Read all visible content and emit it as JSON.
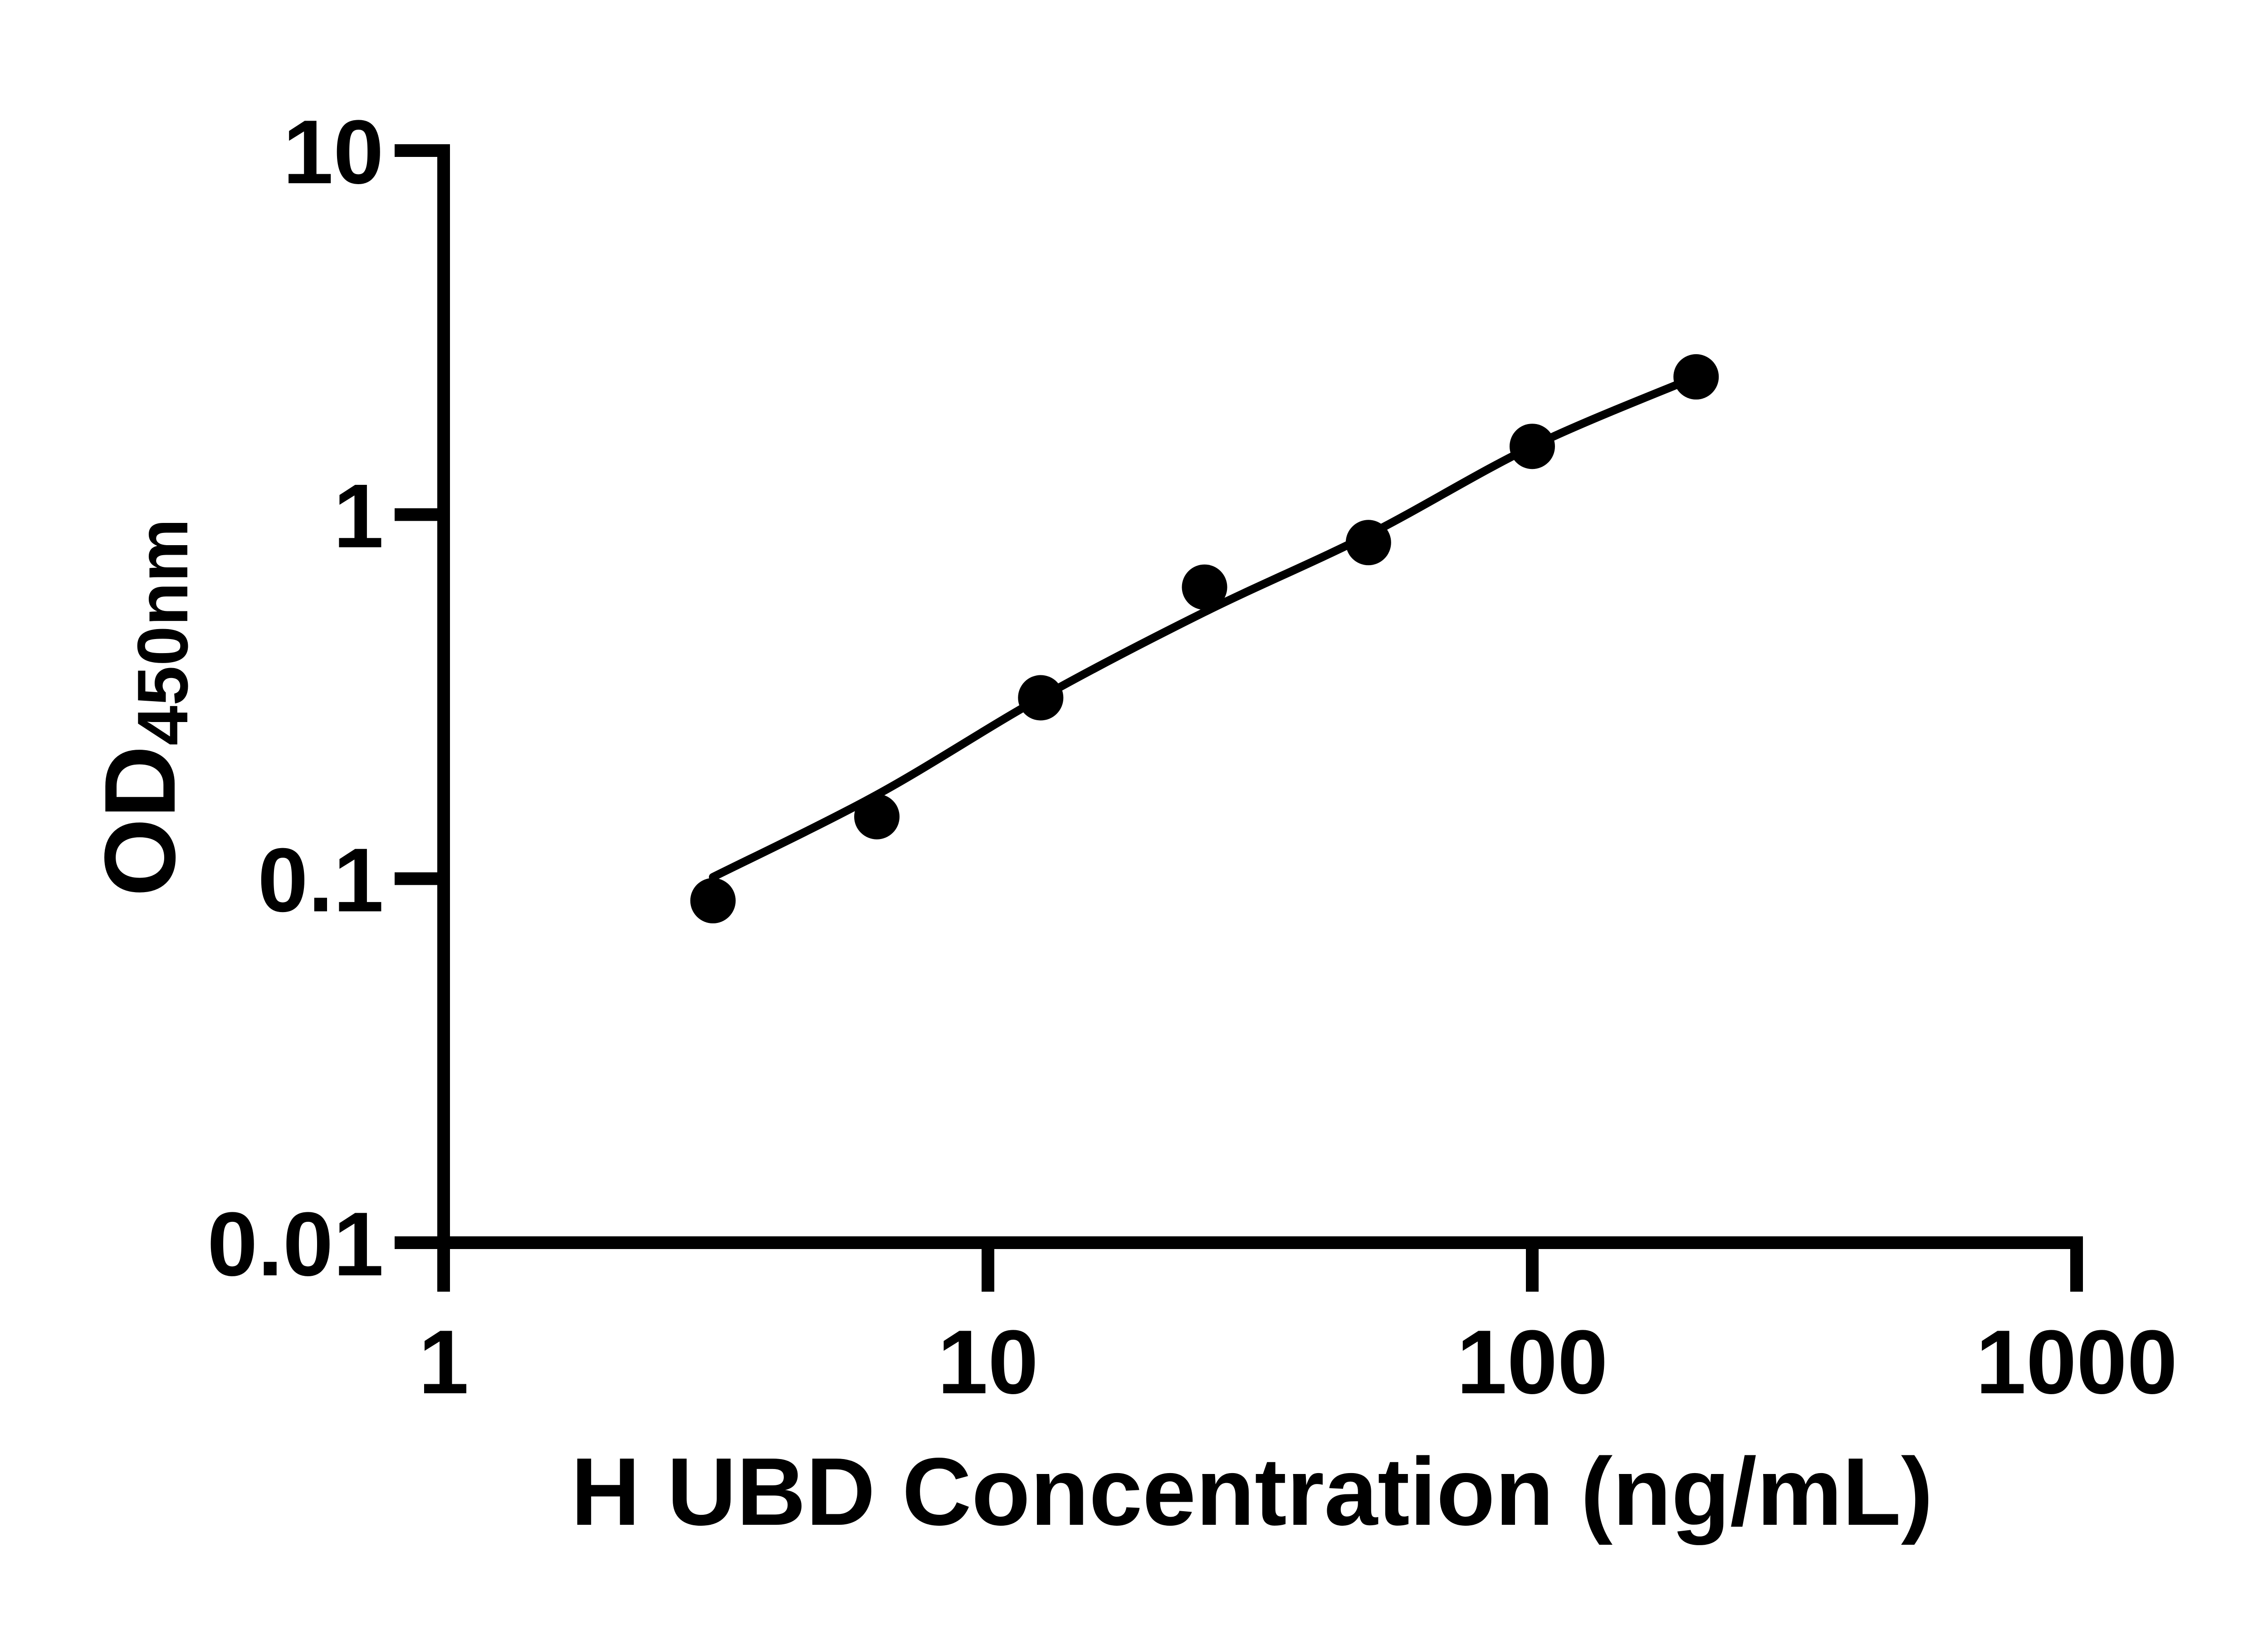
{
  "figure": {
    "background": "#ffffff",
    "ink_color": "#000000"
  },
  "chart_data": {
    "type": "scatter",
    "title": "",
    "xlabel": "H UBD Concentration (ng/mL)",
    "ylabel": "OD450nm",
    "ylabel_main": "OD",
    "ylabel_sub": "450nm",
    "x_scale": "log",
    "y_scale": "log",
    "xlim": [
      1,
      1000
    ],
    "ylim": [
      0.01,
      10
    ],
    "grid": false,
    "legend": "none",
    "x_tick_labels": [
      "1",
      "10",
      "100",
      "1000"
    ],
    "x_tick_values": [
      1,
      10,
      100,
      1000
    ],
    "y_tick_labels": [
      "10",
      "1",
      "0.1",
      "0.01"
    ],
    "y_tick_values": [
      10,
      1,
      0.1,
      0.01
    ],
    "series": [
      {
        "name": "standard-points",
        "style": "filled-circle",
        "color": "#000000",
        "points": [
          {
            "x": 3.125,
            "y": 0.087
          },
          {
            "x": 6.25,
            "y": 0.148
          },
          {
            "x": 12.5,
            "y": 0.314
          },
          {
            "x": 25,
            "y": 0.632
          },
          {
            "x": 50,
            "y": 0.838
          },
          {
            "x": 100,
            "y": 1.54
          },
          {
            "x": 200,
            "y": 2.39
          }
        ]
      },
      {
        "name": "fitted-curve",
        "style": "line",
        "color": "#000000",
        "points": [
          {
            "x": 3.125,
            "y": 0.101
          },
          {
            "x": 6.25,
            "y": 0.17
          },
          {
            "x": 12.5,
            "y": 0.314
          },
          {
            "x": 25,
            "y": 0.54
          },
          {
            "x": 50,
            "y": 0.88
          },
          {
            "x": 100,
            "y": 1.54
          },
          {
            "x": 200,
            "y": 2.39
          }
        ]
      }
    ]
  }
}
